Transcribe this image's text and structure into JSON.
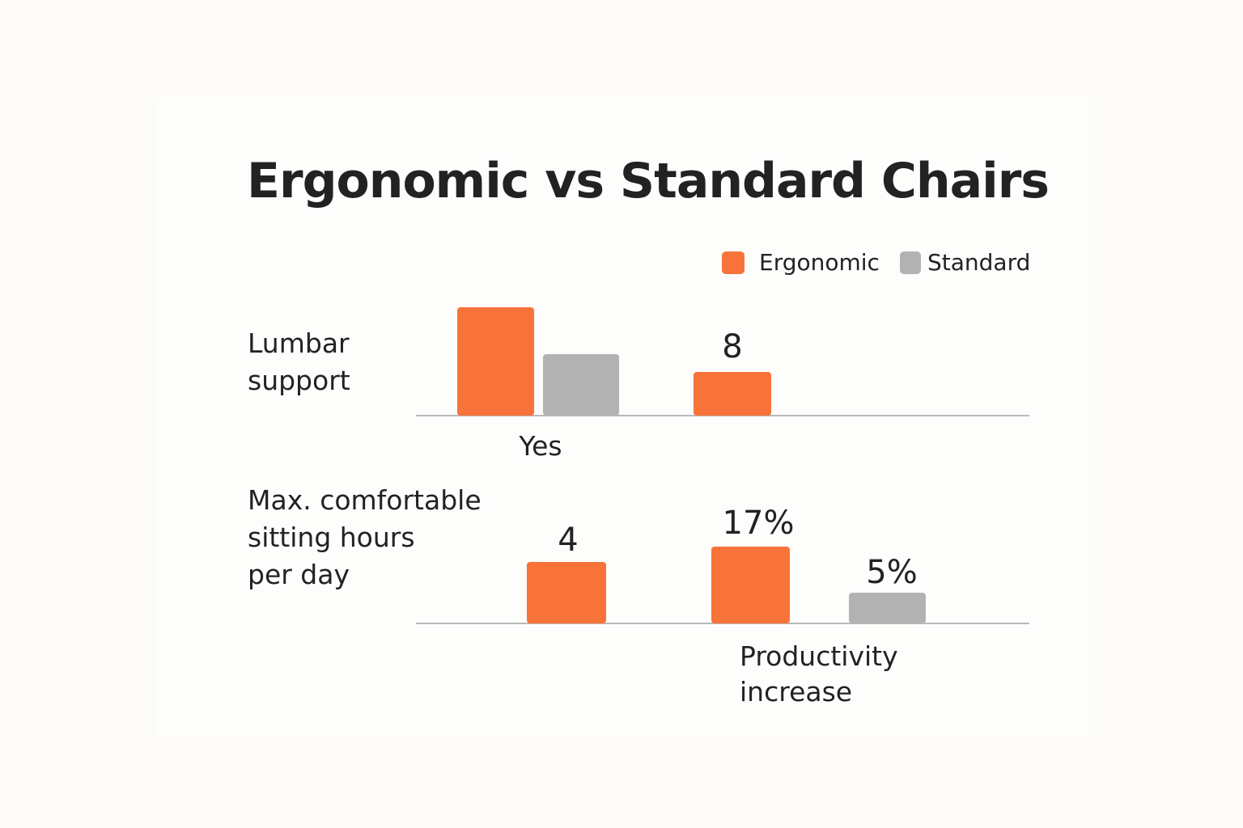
{
  "chart_data": {
    "type": "bar",
    "title": "Ergonomic vs Standard Chairs",
    "legend": {
      "position": "top-right",
      "entries": [
        {
          "name": "Ergonomic",
          "color": "#f7733a"
        },
        {
          "name": "Standard",
          "color": "#b2b2b2"
        }
      ]
    },
    "grid": false,
    "panels": [
      {
        "row_label": "Lumbar support",
        "bars": [
          {
            "series": "Ergonomic",
            "value": 1,
            "label": ""
          },
          {
            "series": "Standard",
            "value": 0.57,
            "label": ""
          },
          {
            "series": "Ergonomic",
            "value": 0.4,
            "label": "8"
          }
        ],
        "category_labels": [
          "Yes"
        ]
      },
      {
        "row_label": "Max. comfortable sitting hours per day",
        "bars": [
          {
            "series": "Ergonomic",
            "value": 0.8,
            "label": "4"
          },
          {
            "series": "Ergonomic",
            "value": 1,
            "label": "17%"
          },
          {
            "series": "Standard",
            "value": 0.4,
            "label": "5%"
          }
        ],
        "category_labels": [
          "Productivity increase"
        ]
      }
    ]
  }
}
